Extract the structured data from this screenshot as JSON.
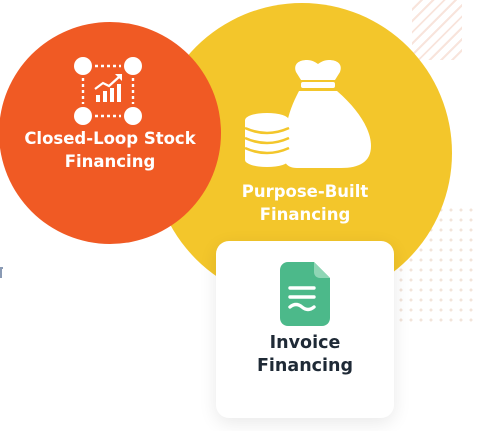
{
  "orange_circle": {
    "label_line1": "Closed-Loop Stock",
    "label_line2": "Financing",
    "icon": "network-chart-icon"
  },
  "yellow_circle": {
    "label_line1": "Purpose-Built",
    "label_line2": "Financing",
    "icon": "money-bag-coins-icon"
  },
  "card": {
    "label_line1": "Invoice",
    "label_line2": "Financing",
    "icon": "document-icon"
  },
  "colors": {
    "orange": "#f05a24",
    "yellow": "#f3c62b",
    "green": "#4cb98a",
    "white": "#ffffff",
    "dark_text": "#1f2a36"
  }
}
